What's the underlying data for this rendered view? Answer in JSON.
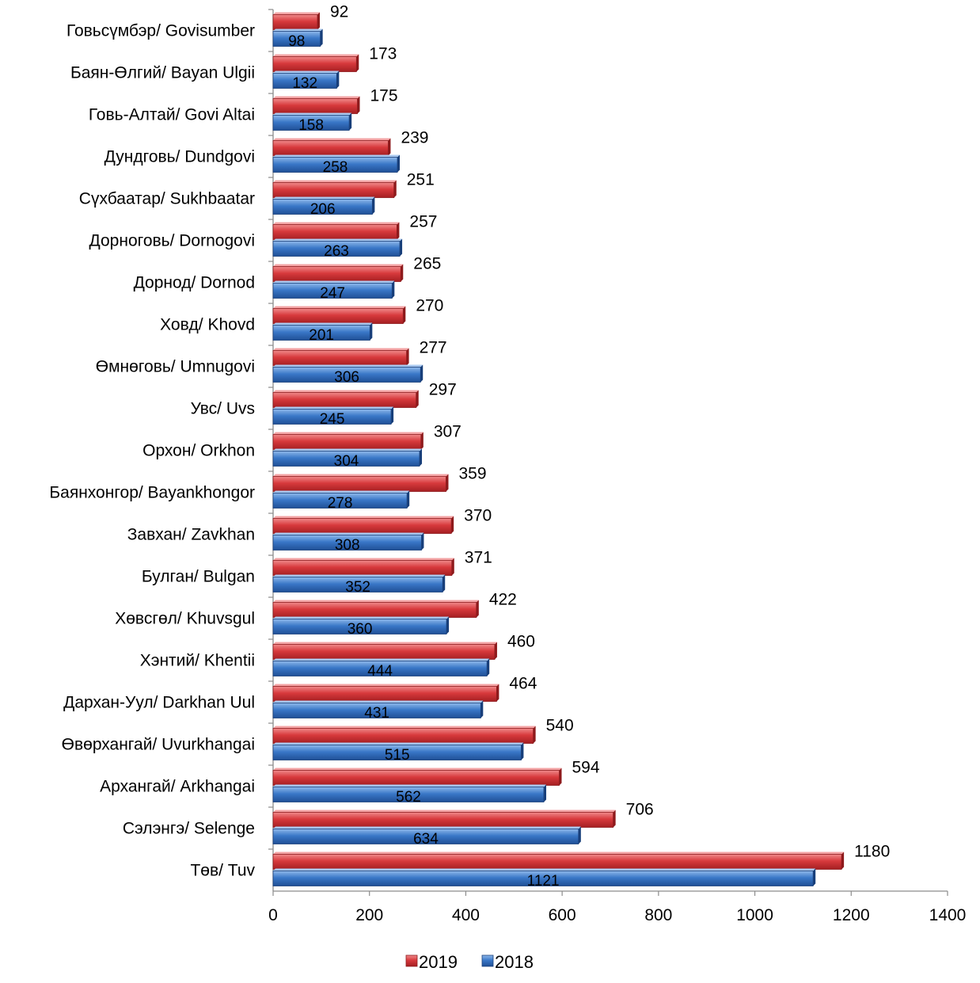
{
  "chart_data": {
    "type": "bar",
    "orientation": "horizontal",
    "categories": [
      "Говьсүмбэр/ Govisumber",
      "Баян-Өлгий/ Bayan Ulgii",
      "Говь-Алтай/ Govi Altai",
      "Дундговь/ Dundgovi",
      "Сүхбаатар/ Sukhbaatar",
      "Дорноговь/ Dornogovi",
      "Дорнод/ Dornod",
      "Ховд/ Khovd",
      "Өмнөговь/ Umnugovi",
      "Увс/ Uvs",
      "Орхон/ Orkhon",
      "Баянхонгор/ Bayankhongor",
      "Завхан/ Zavkhan",
      "Булган/ Bulgan",
      "Хөвсгөл/ Khuvsgul",
      "Хэнтий/ Khentii",
      "Дархан-Уул/ Darkhan Uul",
      "Өвөрхангай/ Uvurkhangai",
      "Архангай/ Arkhangai",
      "Сэлэнгэ/ Selenge",
      "Төв/ Tuv"
    ],
    "series": [
      {
        "name": "2019",
        "color": "#d7393c",
        "values": [
          92,
          173,
          175,
          239,
          251,
          257,
          265,
          270,
          277,
          297,
          307,
          359,
          370,
          371,
          422,
          460,
          464,
          540,
          594,
          706,
          1180
        ]
      },
      {
        "name": "2018",
        "color": "#3a78c8",
        "values": [
          98,
          132,
          158,
          258,
          206,
          263,
          247,
          201,
          306,
          245,
          304,
          278,
          308,
          352,
          360,
          444,
          431,
          515,
          562,
          634,
          1121
        ]
      }
    ],
    "xlim": [
      0,
      1400
    ],
    "x_ticks": [
      0,
      200,
      400,
      600,
      800,
      1000,
      1200,
      1400
    ],
    "title": "",
    "xlabel": "",
    "ylabel": "",
    "grid": false,
    "legend_position": "bottom"
  }
}
